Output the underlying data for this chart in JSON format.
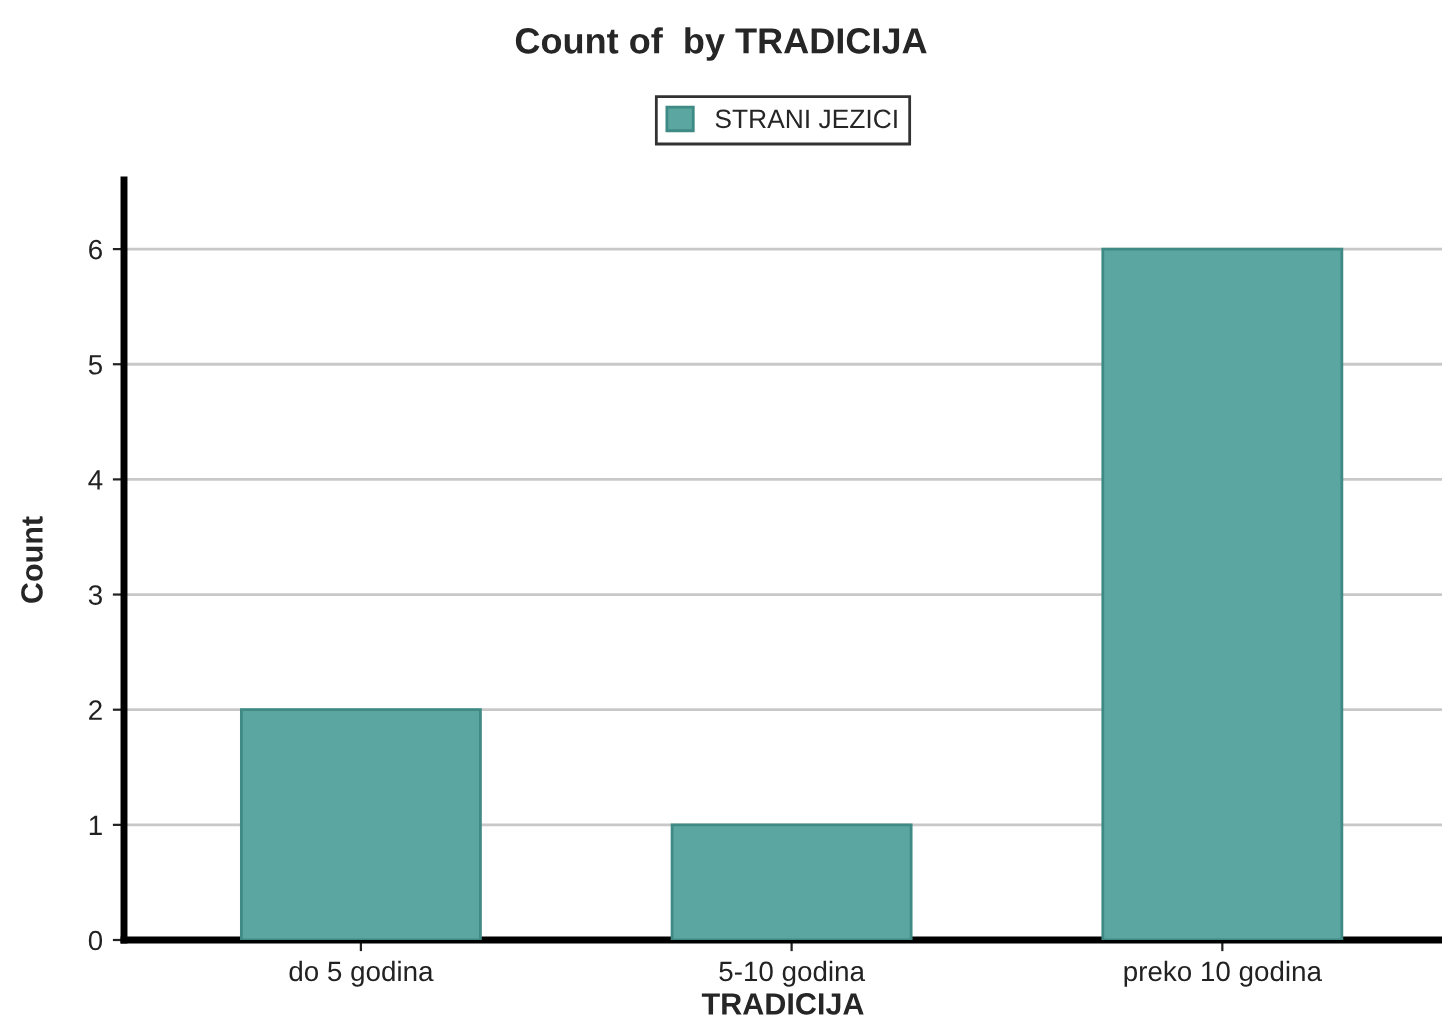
{
  "chart_data": {
    "type": "bar",
    "title": "Count of  by TRADICIJA",
    "xlabel": "TRADICIJA",
    "ylabel": "Count",
    "categories": [
      "do 5 godina",
      "5-10 godina",
      "preko 10 godina"
    ],
    "series": [
      {
        "name": "STRANI JEZICI",
        "color": "#5ba6a0",
        "values": [
          2,
          1,
          6
        ]
      }
    ],
    "ylim": [
      0,
      6.6
    ],
    "yticks": [
      0,
      1,
      2,
      3,
      4,
      5,
      6
    ],
    "grid": "y",
    "legend": "top"
  }
}
